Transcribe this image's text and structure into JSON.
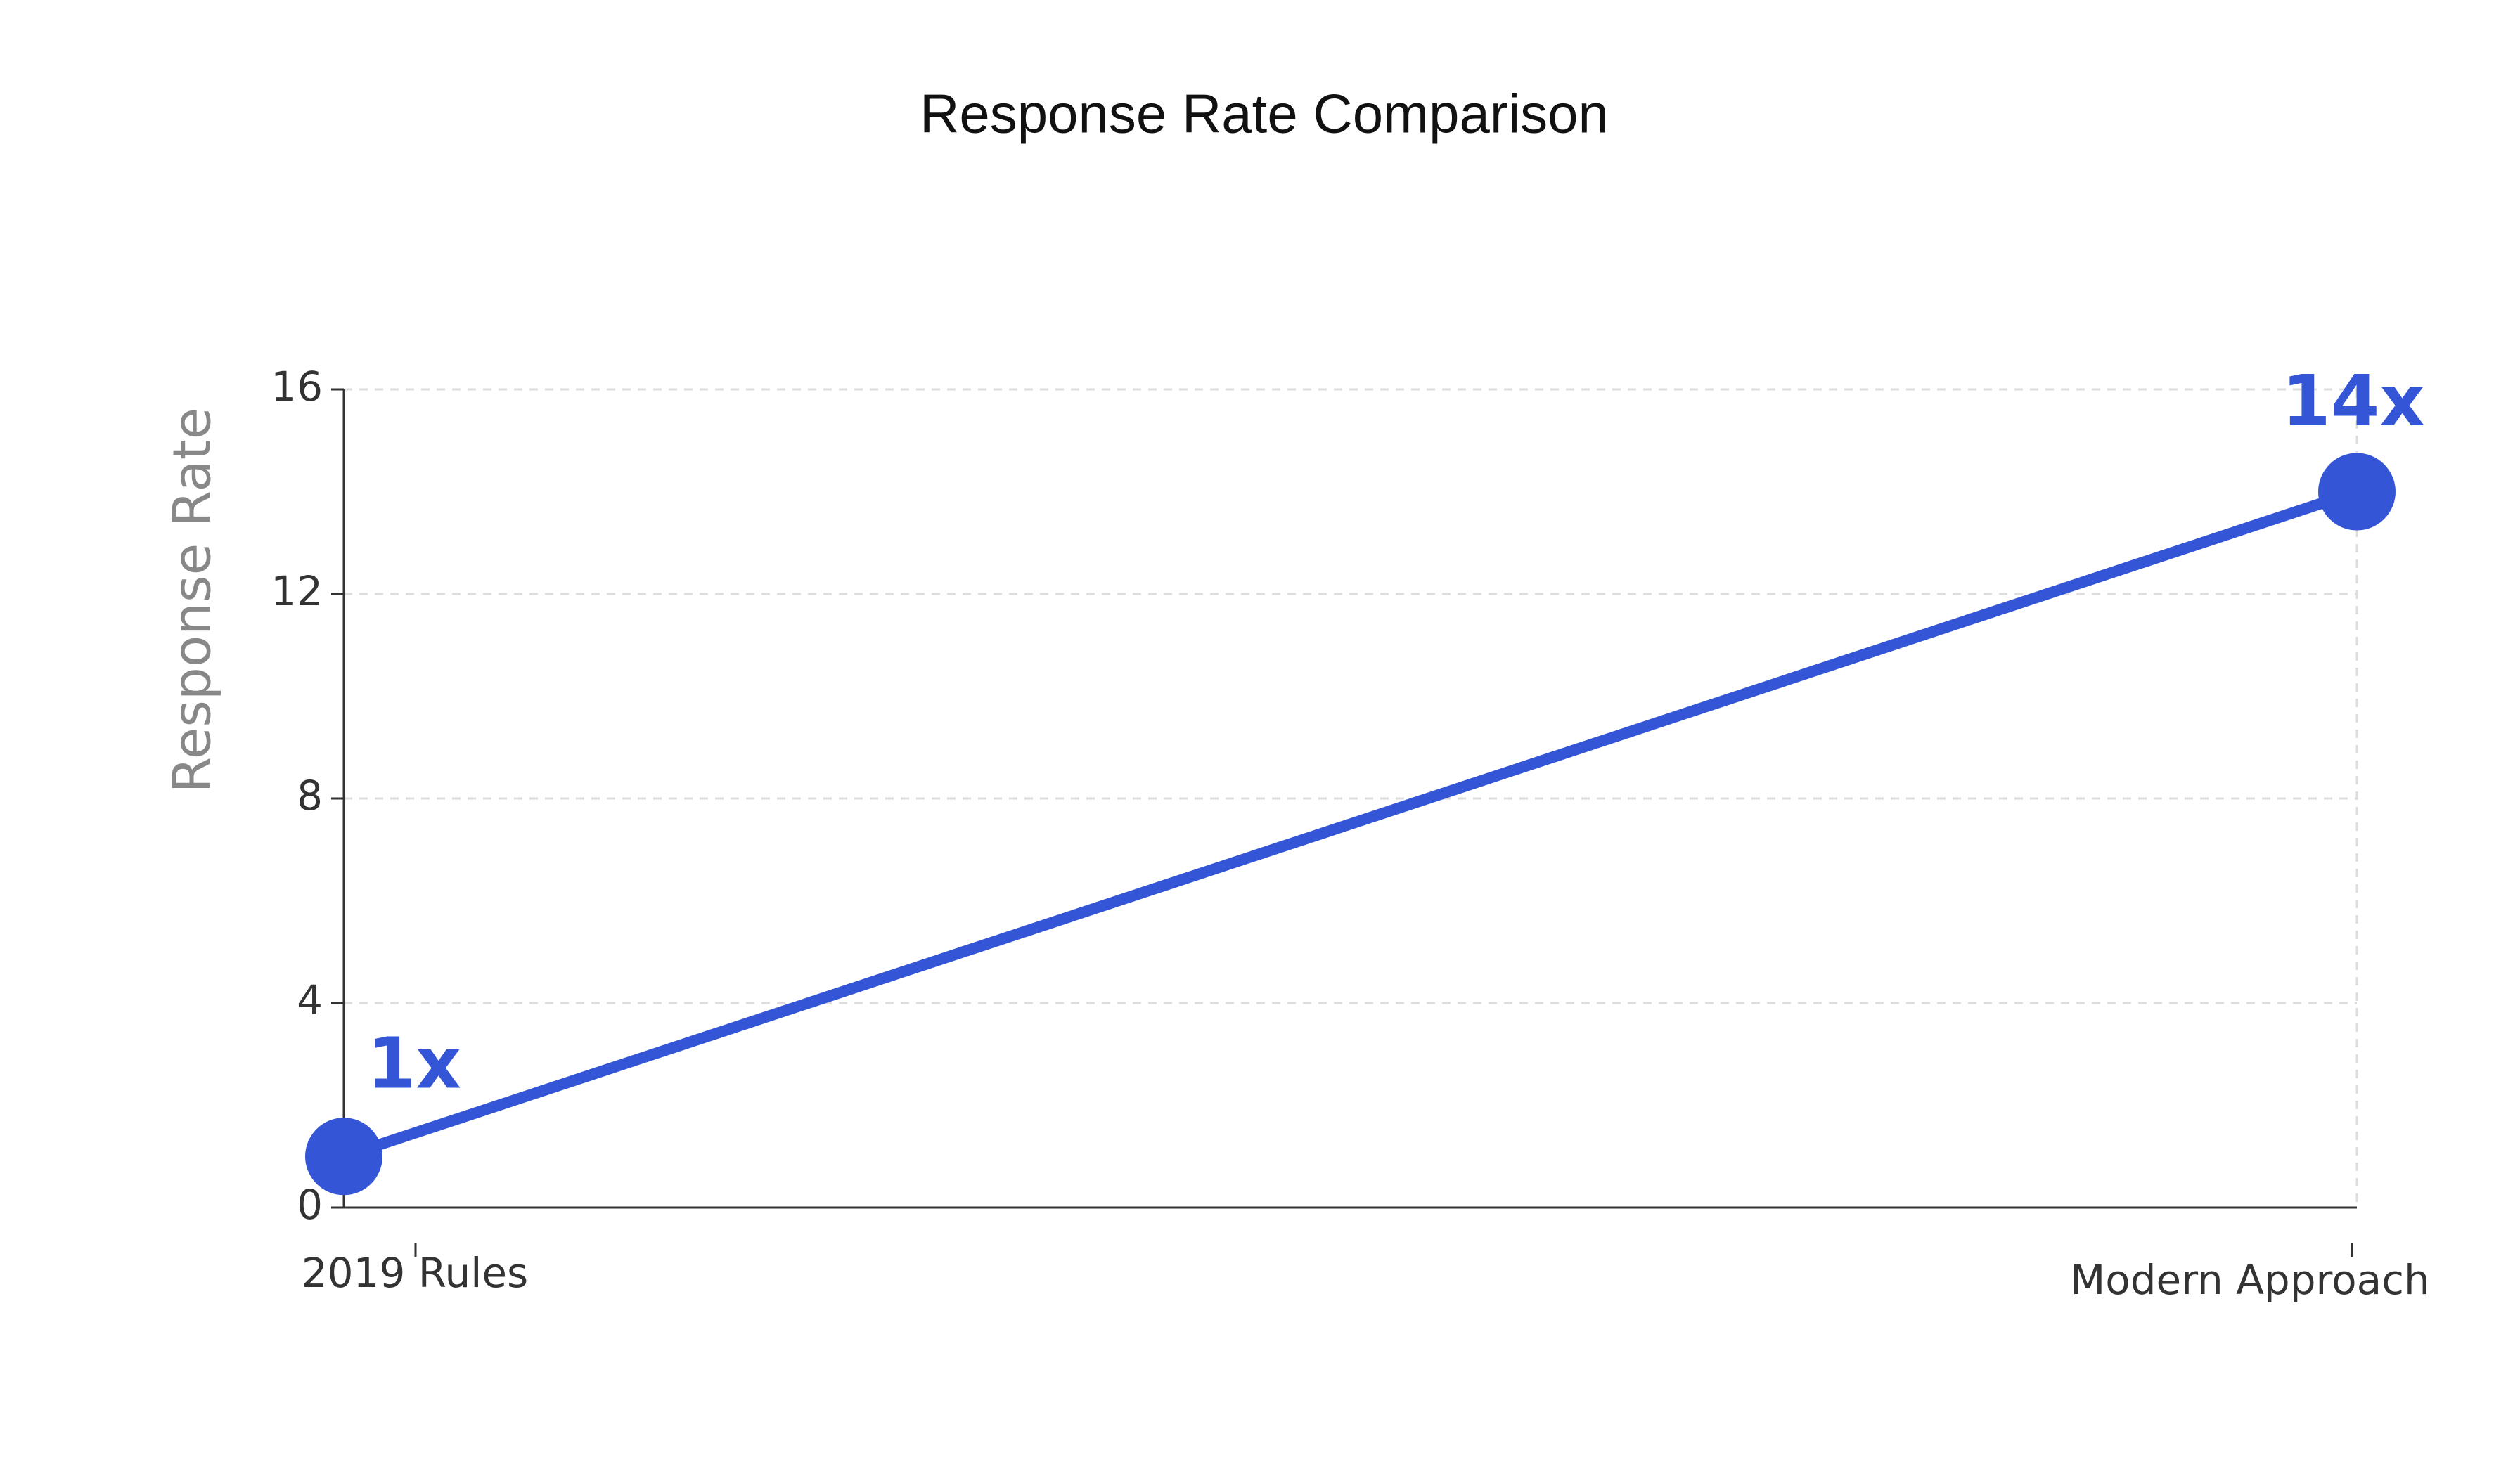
{
  "chart_data": {
    "type": "line",
    "title": "Response Rate Comparison",
    "y_label": "Response Rate",
    "categories": [
      "2019 Rules",
      "Modern Approach"
    ],
    "values": [
      1,
      14
    ],
    "value_labels": [
      "1x",
      "14x"
    ],
    "color": "#3355d6",
    "ylim": [
      0,
      16
    ],
    "yticks": [
      0,
      4,
      8,
      12,
      16
    ],
    "grid": true
  }
}
